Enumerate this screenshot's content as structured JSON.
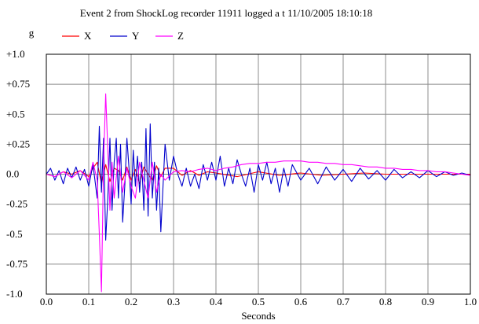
{
  "chart_data": {
    "type": "line",
    "title": "Event 2 from ShockLog recorder 11911 logged a t 11/10/2005 18:10:18",
    "xlabel": "Seconds",
    "ylabel": "g",
    "xlim": [
      0.0,
      1.0
    ],
    "ylim": [
      -1.0,
      1.0
    ],
    "grid": true,
    "legend": "top-left",
    "x_ticks": [
      {
        "value": 0.0,
        "label": "0.0"
      },
      {
        "value": 0.1,
        "label": "0.1"
      },
      {
        "value": 0.2,
        "label": "0.2"
      },
      {
        "value": 0.3,
        "label": "0.3"
      },
      {
        "value": 0.4,
        "label": "0.4"
      },
      {
        "value": 0.5,
        "label": "0.5"
      },
      {
        "value": 0.6,
        "label": "0.6"
      },
      {
        "value": 0.7,
        "label": "0.7"
      },
      {
        "value": 0.8,
        "label": "0.8"
      },
      {
        "value": 0.9,
        "label": "0.9"
      },
      {
        "value": 1.0,
        "label": "1.0"
      }
    ],
    "y_ticks": [
      {
        "value": 1.0,
        "label": "+1.0"
      },
      {
        "value": 0.75,
        "label": "+0.75"
      },
      {
        "value": 0.5,
        "label": "+0.5"
      },
      {
        "value": 0.25,
        "label": "+0.25"
      },
      {
        "value": 0.0,
        "label": "0.0"
      },
      {
        "value": -0.25,
        "label": "-0.25"
      },
      {
        "value": -0.5,
        "label": "-0.5"
      },
      {
        "value": -0.75,
        "label": "-0.75"
      },
      {
        "value": -1.0,
        "label": "-1.0"
      }
    ],
    "series": [
      {
        "name": "X",
        "color": "#ff0000",
        "x": [
          0.0,
          0.02,
          0.04,
          0.06,
          0.08,
          0.1,
          0.11,
          0.12,
          0.13,
          0.14,
          0.15,
          0.16,
          0.17,
          0.18,
          0.19,
          0.2,
          0.21,
          0.22,
          0.23,
          0.24,
          0.25,
          0.26,
          0.27,
          0.28,
          0.3,
          0.32,
          0.34,
          0.36,
          0.38,
          0.4,
          0.45,
          0.5,
          0.55,
          0.6,
          0.65,
          0.7,
          0.75,
          0.8,
          0.85,
          0.9,
          0.95,
          1.0
        ],
        "y": [
          0.0,
          -0.02,
          0.02,
          0.0,
          0.03,
          -0.02,
          0.05,
          0.1,
          -0.08,
          0.08,
          -0.06,
          0.05,
          0.03,
          -0.05,
          0.06,
          -0.05,
          0.04,
          -0.08,
          0.06,
          0.0,
          -0.05,
          0.07,
          -0.02,
          0.05,
          0.05,
          -0.01,
          0.03,
          -0.01,
          0.02,
          0.01,
          -0.02,
          0.02,
          -0.01,
          0.01,
          -0.01,
          0.0,
          0.01,
          0.0,
          0.0,
          0.0,
          0.0,
          0.0
        ]
      },
      {
        "name": "Y",
        "color": "#0000cc",
        "x": [
          0.0,
          0.01,
          0.02,
          0.03,
          0.04,
          0.05,
          0.06,
          0.07,
          0.08,
          0.09,
          0.1,
          0.11,
          0.12,
          0.125,
          0.13,
          0.135,
          0.14,
          0.145,
          0.15,
          0.155,
          0.16,
          0.165,
          0.17,
          0.175,
          0.18,
          0.185,
          0.19,
          0.195,
          0.2,
          0.205,
          0.21,
          0.215,
          0.22,
          0.225,
          0.23,
          0.235,
          0.24,
          0.245,
          0.25,
          0.255,
          0.26,
          0.265,
          0.27,
          0.28,
          0.29,
          0.3,
          0.31,
          0.32,
          0.33,
          0.34,
          0.35,
          0.36,
          0.37,
          0.38,
          0.39,
          0.4,
          0.41,
          0.42,
          0.43,
          0.44,
          0.45,
          0.46,
          0.47,
          0.48,
          0.49,
          0.5,
          0.51,
          0.52,
          0.53,
          0.54,
          0.55,
          0.56,
          0.57,
          0.58,
          0.6,
          0.62,
          0.64,
          0.66,
          0.68,
          0.7,
          0.72,
          0.74,
          0.76,
          0.78,
          0.8,
          0.82,
          0.84,
          0.86,
          0.88,
          0.9,
          0.92,
          0.94,
          0.96,
          0.98,
          1.0
        ],
        "y": [
          0.0,
          0.05,
          -0.05,
          0.03,
          -0.08,
          0.05,
          -0.03,
          0.06,
          -0.05,
          0.04,
          -0.1,
          0.08,
          -0.2,
          0.4,
          -0.15,
          0.3,
          -0.55,
          -0.2,
          0.3,
          -0.3,
          0.1,
          0.3,
          -0.2,
          0.25,
          -0.4,
          -0.1,
          0.3,
          0.05,
          -0.25,
          0.2,
          -0.1,
          0.15,
          -0.15,
          0.1,
          -0.3,
          0.38,
          -0.35,
          0.42,
          -0.2,
          0.1,
          -0.3,
          0.05,
          -0.48,
          0.25,
          -0.05,
          0.15,
          0.0,
          -0.1,
          0.05,
          -0.1,
          0.0,
          -0.12,
          0.08,
          -0.05,
          0.1,
          -0.05,
          0.15,
          -0.1,
          0.05,
          -0.08,
          0.12,
          0.0,
          -0.1,
          0.05,
          -0.15,
          0.08,
          -0.05,
          0.1,
          -0.08,
          0.05,
          -0.15,
          0.05,
          -0.1,
          0.08,
          -0.05,
          0.05,
          -0.08,
          0.06,
          -0.05,
          0.04,
          -0.06,
          0.05,
          -0.04,
          0.03,
          -0.05,
          0.04,
          -0.03,
          0.02,
          -0.03,
          0.03,
          -0.02,
          0.02,
          -0.01,
          0.01,
          -0.01
        ]
      },
      {
        "name": "Z",
        "color": "#ff00ff",
        "x": [
          0.0,
          0.02,
          0.04,
          0.06,
          0.08,
          0.1,
          0.11,
          0.12,
          0.125,
          0.13,
          0.135,
          0.14,
          0.145,
          0.15,
          0.155,
          0.16,
          0.17,
          0.18,
          0.19,
          0.2,
          0.21,
          0.22,
          0.23,
          0.24,
          0.25,
          0.26,
          0.27,
          0.28,
          0.3,
          0.32,
          0.34,
          0.36,
          0.38,
          0.4,
          0.42,
          0.44,
          0.46,
          0.48,
          0.5,
          0.52,
          0.54,
          0.56,
          0.58,
          0.6,
          0.62,
          0.64,
          0.66,
          0.68,
          0.7,
          0.72,
          0.74,
          0.76,
          0.78,
          0.8,
          0.82,
          0.84,
          0.86,
          0.88,
          0.9,
          0.92,
          0.94,
          0.96,
          0.98,
          1.0
        ],
        "y": [
          0.0,
          -0.02,
          0.02,
          -0.03,
          0.03,
          -0.05,
          0.1,
          -0.05,
          -0.5,
          -0.98,
          0.1,
          0.67,
          0.2,
          -0.3,
          0.1,
          -0.2,
          0.15,
          -0.15,
          0.05,
          -0.1,
          -0.2,
          0.1,
          -0.05,
          -0.2,
          0.1,
          -0.15,
          0.0,
          -0.05,
          0.02,
          0.03,
          0.02,
          0.04,
          0.05,
          0.03,
          0.05,
          0.06,
          0.08,
          0.09,
          0.09,
          0.1,
          0.1,
          0.11,
          0.11,
          0.11,
          0.1,
          0.1,
          0.09,
          0.09,
          0.08,
          0.08,
          0.07,
          0.06,
          0.06,
          0.05,
          0.05,
          0.04,
          0.04,
          0.03,
          0.03,
          0.02,
          0.02,
          0.01,
          0.0,
          -0.01
        ]
      }
    ]
  }
}
